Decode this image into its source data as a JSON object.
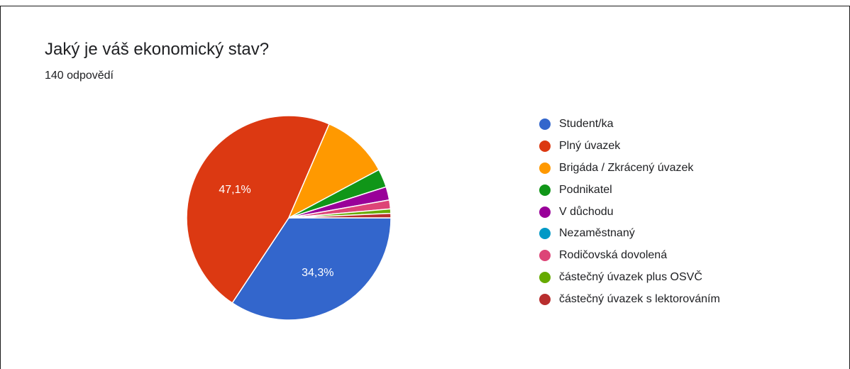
{
  "header": {
    "title": "Jaký je váš ekonomický stav?",
    "subtitle": "140 odpovědí"
  },
  "chart_data": {
    "type": "pie",
    "title": "Jaký je váš ekonomický stav?",
    "subtitle": "140 odpovědí",
    "start_angle_deg": 90,
    "direction": "clockwise",
    "legend_position": "right",
    "slices": [
      {
        "label": "Student/ka",
        "value": 34.3,
        "value_label": "34,3%",
        "color": "#3366cc"
      },
      {
        "label": "Plný úvazek",
        "value": 47.1,
        "value_label": "47,1%",
        "color": "#dc3912"
      },
      {
        "label": "Brigáda / Zkrácený úvazek",
        "value": 10.7,
        "value_label": "",
        "color": "#ff9900"
      },
      {
        "label": "Podnikatel",
        "value": 2.9,
        "value_label": "",
        "color": "#109618"
      },
      {
        "label": "V důchodu",
        "value": 2.1,
        "value_label": "",
        "color": "#990099"
      },
      {
        "label": "Nezaměstnaný",
        "value": 0.0,
        "value_label": "",
        "color": "#0099c6"
      },
      {
        "label": "Rodičovská dovolená",
        "value": 1.4,
        "value_label": "",
        "color": "#dd4477"
      },
      {
        "label": "částečný úvazek plus OSVČ",
        "value": 0.7,
        "value_label": "",
        "color": "#66aa00"
      },
      {
        "label": "částečný úvazek s lektorováním",
        "value": 0.7,
        "value_label": "",
        "color": "#b82e2e"
      }
    ]
  }
}
